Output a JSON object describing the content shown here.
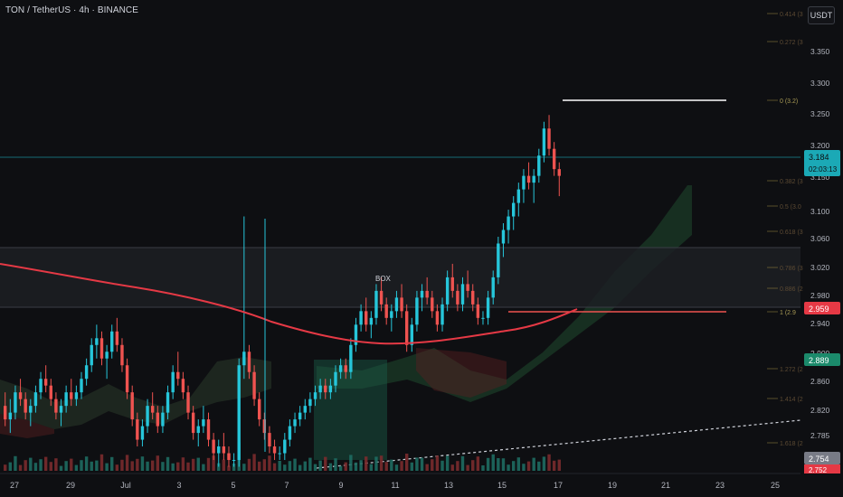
{
  "header": {
    "title": "TON / TetherUS · 4h · BINANCE",
    "currency_button": "USDT"
  },
  "price_scale": {
    "ticks": [
      "3.350",
      "3.300",
      "3.250",
      "3.200",
      "3.150",
      "3.100",
      "3.060",
      "3.020",
      "2.980",
      "2.940",
      "2.900",
      "2.860",
      "2.820",
      "2.785"
    ],
    "badges": {
      "last_price": "3.184",
      "countdown": "02:03:13",
      "ma_value": "2.959",
      "ichimoku_value": "2.889",
      "bottom_value": "2.754",
      "bottom_value_2": "2.752"
    }
  },
  "fib_labels": [
    "0.414 (3",
    "0.272 (3",
    "0 (3.2)",
    "0.382 (3",
    "0.5 (3.0",
    "0.618 (3",
    "0.786 (3",
    "0.886 (2",
    "1 (2.9",
    "1.272 (2",
    "1.414 (2",
    "1.618 (2"
  ],
  "annotations": {
    "box_label": "BOX"
  },
  "x_axis": {
    "ticks": [
      "27",
      "29",
      "Jul",
      "3",
      "5",
      "7",
      "9",
      "11",
      "13",
      "15",
      "17",
      "19",
      "21",
      "23",
      "25"
    ]
  },
  "colors": {
    "background": "#0e0f12",
    "up": "#26c6da",
    "down": "#ef5350",
    "ma": "#e53945",
    "last_price_line": "#1ba9b6",
    "fib": "#8a7a3c",
    "trendline": "#d1d4dc"
  },
  "chart_data": {
    "type": "candlestick",
    "symbol": "TON / TetherUS",
    "interval": "4h",
    "exchange": "BINANCE",
    "y_axis_range": [
      2.74,
      3.44
    ],
    "last_price": 3.184,
    "moving_average_last": 2.959,
    "candles_ohlc": [
      [
        2.84,
        2.86,
        2.81,
        2.82
      ],
      [
        2.82,
        2.85,
        2.8,
        2.83
      ],
      [
        2.83,
        2.87,
        2.82,
        2.86
      ],
      [
        2.86,
        2.88,
        2.84,
        2.85
      ],
      [
        2.85,
        2.86,
        2.82,
        2.83
      ],
      [
        2.83,
        2.85,
        2.81,
        2.84
      ],
      [
        2.84,
        2.87,
        2.83,
        2.86
      ],
      [
        2.86,
        2.89,
        2.85,
        2.88
      ],
      [
        2.88,
        2.9,
        2.86,
        2.87
      ],
      [
        2.87,
        2.88,
        2.84,
        2.85
      ],
      [
        2.85,
        2.86,
        2.82,
        2.83
      ],
      [
        2.83,
        2.85,
        2.81,
        2.84
      ],
      [
        2.84,
        2.87,
        2.83,
        2.86
      ],
      [
        2.86,
        2.88,
        2.84,
        2.85
      ],
      [
        2.85,
        2.87,
        2.84,
        2.86
      ],
      [
        2.86,
        2.89,
        2.85,
        2.88
      ],
      [
        2.88,
        2.91,
        2.87,
        2.9
      ],
      [
        2.9,
        2.94,
        2.89,
        2.93
      ],
      [
        2.93,
        2.96,
        2.91,
        2.94
      ],
      [
        2.94,
        2.95,
        2.9,
        2.91
      ],
      [
        2.91,
        2.93,
        2.88,
        2.92
      ],
      [
        2.92,
        2.96,
        2.91,
        2.95
      ],
      [
        2.95,
        2.97,
        2.92,
        2.93
      ],
      [
        2.93,
        2.94,
        2.89,
        2.9
      ],
      [
        2.9,
        2.91,
        2.85,
        2.86
      ],
      [
        2.86,
        2.87,
        2.81,
        2.82
      ],
      [
        2.82,
        2.83,
        2.78,
        2.79
      ],
      [
        2.79,
        2.82,
        2.78,
        2.81
      ],
      [
        2.81,
        2.85,
        2.8,
        2.84
      ],
      [
        2.84,
        2.86,
        2.82,
        2.83
      ],
      [
        2.83,
        2.84,
        2.8,
        2.81
      ],
      [
        2.81,
        2.84,
        2.8,
        2.83
      ],
      [
        2.83,
        2.87,
        2.82,
        2.86
      ],
      [
        2.86,
        2.9,
        2.85,
        2.89
      ],
      [
        2.89,
        2.92,
        2.87,
        2.88
      ],
      [
        2.88,
        2.89,
        2.85,
        2.86
      ],
      [
        2.86,
        2.87,
        2.82,
        2.83
      ],
      [
        2.83,
        2.84,
        2.79,
        2.8
      ],
      [
        2.8,
        2.82,
        2.78,
        2.81
      ],
      [
        2.81,
        2.84,
        2.8,
        2.82
      ],
      [
        2.82,
        2.83,
        2.78,
        2.79
      ],
      [
        2.79,
        2.8,
        2.76,
        2.77
      ],
      [
        2.77,
        2.79,
        2.75,
        2.78
      ],
      [
        2.78,
        2.8,
        2.76,
        2.77
      ],
      [
        2.77,
        2.78,
        2.75,
        2.76
      ],
      [
        2.76,
        2.77,
        2.75,
        2.76
      ],
      [
        2.76,
        2.91,
        2.75,
        2.9
      ],
      [
        2.9,
        3.12,
        2.88,
        2.92
      ],
      [
        2.92,
        2.93,
        2.88,
        2.89
      ],
      [
        2.89,
        2.9,
        2.84,
        2.85
      ],
      [
        2.85,
        2.86,
        2.81,
        2.82
      ],
      [
        2.82,
        2.83,
        2.79,
        2.8
      ],
      [
        2.8,
        2.81,
        2.77,
        2.78
      ],
      [
        2.78,
        2.79,
        2.76,
        2.77
      ],
      [
        2.77,
        2.78,
        2.76,
        2.77
      ],
      [
        2.77,
        2.8,
        2.76,
        2.79
      ],
      [
        2.79,
        2.82,
        2.78,
        2.81
      ],
      [
        2.81,
        2.83,
        2.8,
        2.82
      ],
      [
        2.82,
        2.84,
        2.81,
        2.83
      ],
      [
        2.83,
        2.85,
        2.82,
        2.84
      ],
      [
        2.84,
        2.86,
        2.83,
        2.85
      ],
      [
        2.85,
        2.87,
        2.84,
        2.86
      ],
      [
        2.86,
        2.88,
        2.85,
        2.87
      ],
      [
        2.87,
        2.88,
        2.85,
        2.86
      ],
      [
        2.86,
        2.88,
        2.85,
        2.87
      ],
      [
        2.87,
        2.9,
        2.86,
        2.89
      ],
      [
        2.89,
        2.91,
        2.88,
        2.9
      ],
      [
        2.9,
        2.91,
        2.88,
        2.89
      ],
      [
        2.89,
        2.94,
        2.88,
        2.93
      ],
      [
        2.93,
        2.97,
        2.92,
        2.96
      ],
      [
        2.96,
        2.99,
        2.95,
        2.98
      ],
      [
        2.98,
        3.0,
        2.95,
        2.96
      ],
      [
        2.96,
        2.98,
        2.94,
        2.97
      ],
      [
        2.97,
        3.02,
        2.96,
        3.01
      ],
      [
        3.01,
        3.03,
        2.98,
        2.99
      ],
      [
        2.99,
        3.0,
        2.96,
        2.97
      ],
      [
        2.97,
        2.99,
        2.95,
        2.98
      ],
      [
        2.98,
        3.01,
        2.97,
        3.0
      ],
      [
        3.0,
        3.02,
        2.97,
        2.98
      ],
      [
        2.98,
        2.99,
        2.92,
        2.93
      ],
      [
        2.93,
        2.97,
        2.92,
        2.96
      ],
      [
        2.96,
        3.01,
        2.95,
        3.0
      ],
      [
        3.0,
        3.02,
        2.98,
        3.01
      ],
      [
        3.01,
        3.03,
        2.99,
        3.0
      ],
      [
        3.0,
        3.01,
        2.97,
        2.98
      ],
      [
        2.98,
        2.99,
        2.95,
        2.96
      ],
      [
        2.96,
        3.0,
        2.95,
        2.99
      ],
      [
        2.99,
        3.04,
        2.98,
        3.03
      ],
      [
        3.03,
        3.05,
        3.0,
        3.01
      ],
      [
        3.01,
        3.02,
        2.98,
        2.99
      ],
      [
        2.99,
        3.03,
        2.98,
        3.02
      ],
      [
        3.02,
        3.04,
        3.0,
        3.01
      ],
      [
        3.01,
        3.02,
        2.98,
        2.99
      ],
      [
        2.99,
        3.0,
        2.96,
        2.97
      ],
      [
        2.97,
        2.98,
        2.96,
        2.97
      ],
      [
        2.97,
        3.01,
        2.96,
        3.0
      ],
      [
        3.0,
        3.04,
        2.99,
        3.03
      ],
      [
        3.03,
        3.09,
        3.02,
        3.08
      ],
      [
        3.08,
        3.11,
        3.06,
        3.1
      ],
      [
        3.1,
        3.13,
        3.08,
        3.12
      ],
      [
        3.12,
        3.15,
        3.1,
        3.14
      ],
      [
        3.14,
        3.17,
        3.12,
        3.16
      ],
      [
        3.16,
        3.19,
        3.14,
        3.18
      ],
      [
        3.18,
        3.2,
        3.16,
        3.17
      ],
      [
        3.17,
        3.19,
        3.14,
        3.18
      ],
      [
        3.18,
        3.22,
        3.17,
        3.21
      ],
      [
        3.21,
        3.26,
        3.2,
        3.25
      ],
      [
        3.25,
        3.27,
        3.21,
        3.22
      ],
      [
        3.22,
        3.23,
        3.18,
        3.19
      ],
      [
        3.19,
        3.2,
        3.15,
        3.18
      ]
    ],
    "annotation_box": {
      "label": "BOX",
      "price_top": 3.045,
      "price_bottom": 2.95
    },
    "horizontal_lines": [
      {
        "price": 3.27,
        "color": "white"
      },
      {
        "price": 2.955,
        "color": "red"
      }
    ],
    "fibonacci_levels": [
      0.414,
      0.272,
      0,
      0.382,
      0.5,
      0.618,
      0.786,
      0.886,
      1,
      1.272,
      1.414,
      1.618
    ]
  }
}
